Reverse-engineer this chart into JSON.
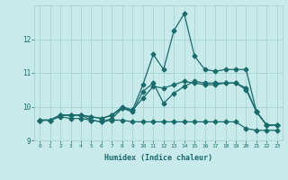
{
  "xlabel": "Humidex (Indice chaleur)",
  "x": [
    0,
    1,
    2,
    3,
    4,
    5,
    6,
    7,
    8,
    9,
    10,
    11,
    12,
    13,
    14,
    15,
    16,
    17,
    18,
    19,
    20,
    21,
    22,
    23
  ],
  "line1_flat": [
    9.6,
    9.6,
    9.7,
    9.65,
    9.65,
    9.6,
    9.55,
    9.6,
    9.6,
    9.55,
    9.55,
    9.55,
    9.55,
    9.55,
    9.55,
    9.55,
    9.55,
    9.55,
    9.55,
    9.55,
    9.35,
    9.3,
    9.3,
    9.3
  ],
  "line2_smooth": [
    9.6,
    9.6,
    9.75,
    9.75,
    9.75,
    9.7,
    9.65,
    9.75,
    9.95,
    9.9,
    10.25,
    10.6,
    10.55,
    10.65,
    10.75,
    10.7,
    10.65,
    10.65,
    10.7,
    10.7,
    10.55,
    9.85,
    9.45,
    9.45
  ],
  "line3_spiky": [
    9.6,
    9.6,
    9.75,
    9.75,
    9.75,
    9.7,
    9.65,
    9.75,
    10.0,
    9.9,
    10.65,
    11.55,
    11.1,
    12.25,
    12.75,
    11.5,
    11.1,
    11.05,
    11.1,
    11.1,
    11.1,
    9.85,
    9.45,
    9.45
  ],
  "line4_med": [
    9.6,
    9.6,
    9.75,
    9.75,
    9.75,
    9.6,
    9.55,
    9.65,
    9.95,
    9.85,
    10.45,
    10.7,
    10.1,
    10.4,
    10.6,
    10.75,
    10.7,
    10.7,
    10.7,
    10.7,
    10.5,
    9.85,
    9.45,
    9.45
  ],
  "bg_color": "#c8eaea",
  "grid_color": "#9ecece",
  "line_color": "#1a6b6b",
  "ylim": [
    9.0,
    13.0
  ],
  "xlim": [
    -0.5,
    23.5
  ],
  "yticks": [
    9,
    10,
    11,
    12
  ],
  "xticks": [
    0,
    1,
    2,
    3,
    4,
    5,
    6,
    7,
    8,
    9,
    10,
    11,
    12,
    13,
    14,
    15,
    16,
    17,
    18,
    19,
    20,
    21,
    22,
    23
  ]
}
